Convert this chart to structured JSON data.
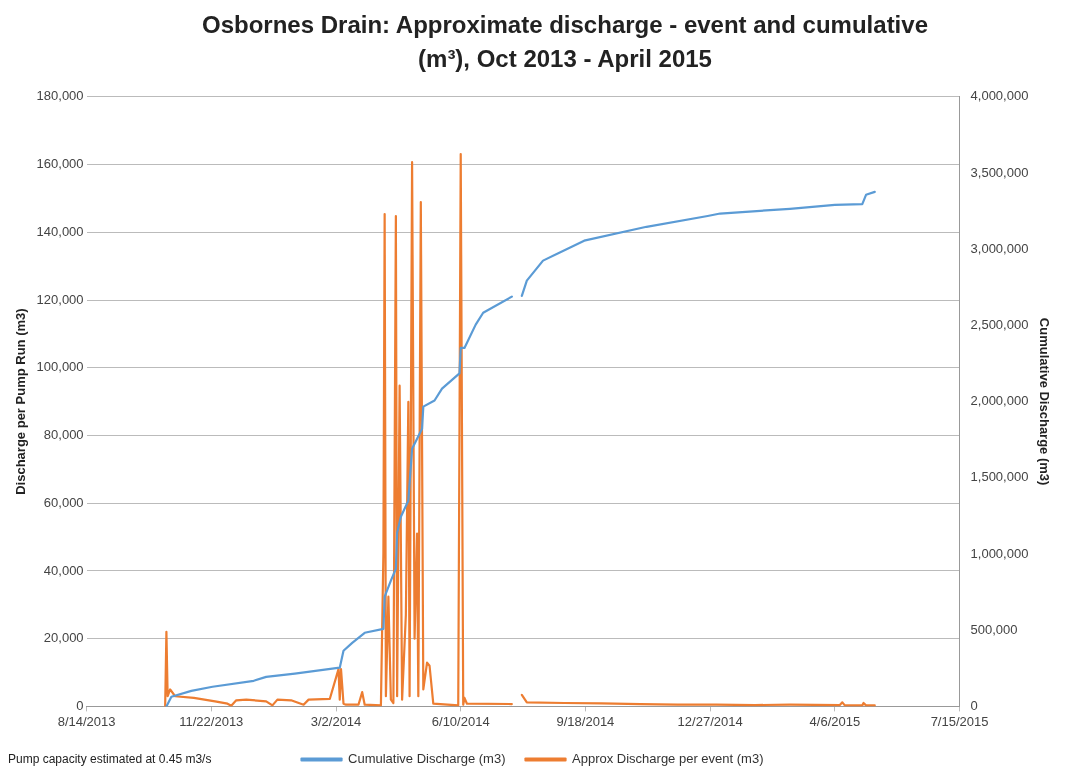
{
  "chart_data": {
    "type": "line",
    "title": "Osbornes Drain: Approximate discharge - event and cumulative (m³), Oct 2013 - April 2015",
    "ylabel": "Discharge per Pump Run (m3)",
    "y2label": "Cumulative Discharge (m3)",
    "annotations": [
      "Pump capacity estimated at 0.45 m3/s"
    ],
    "xlim": [
      "2013-08-14",
      "2015-07-15"
    ],
    "xticks": [
      {
        "value": "2013-08-14",
        "label": "8/14/2013"
      },
      {
        "value": "2013-11-22",
        "label": "11/22/2013"
      },
      {
        "value": "2014-03-02",
        "label": "3/2/2014"
      },
      {
        "value": "2014-06-10",
        "label": "6/10/2014"
      },
      {
        "value": "2014-09-18",
        "label": "9/18/2014"
      },
      {
        "value": "2014-12-27",
        "label": "12/27/2014"
      },
      {
        "value": "2015-04-06",
        "label": "4/6/2015"
      },
      {
        "value": "2015-07-15",
        "label": "7/15/2015"
      }
    ],
    "ylim": [
      0,
      180000
    ],
    "yticks": [
      0,
      {
        "value": 20000,
        "label": "20,000"
      },
      {
        "value": 40000,
        "label": "40,000"
      },
      {
        "value": 60000,
        "label": "60,000"
      },
      {
        "value": 80000,
        "label": "80,000"
      },
      {
        "value": 100000,
        "label": "100,000"
      },
      {
        "value": 120000,
        "label": "120,000"
      },
      {
        "value": 140000,
        "label": "140,000"
      },
      {
        "value": 160000,
        "label": "160,000"
      },
      {
        "value": 180000,
        "label": "180,000"
      }
    ],
    "y2lim": [
      0,
      4000000
    ],
    "y2ticks": [
      0,
      {
        "value": 500000,
        "label": "500,000"
      },
      {
        "value": 1000000,
        "label": "1,000,000"
      },
      {
        "value": 1500000,
        "label": "1,500,000"
      },
      {
        "value": 2000000,
        "label": "2,000,000"
      },
      {
        "value": 2500000,
        "label": "2,500,000"
      },
      {
        "value": 3000000,
        "label": "3,000,000"
      },
      {
        "value": 3500000,
        "label": "3,500,000"
      },
      {
        "value": 4000000,
        "label": "4,000,000"
      }
    ],
    "grid": "y",
    "legend": "bottom",
    "marker": "none",
    "line_style": "solid",
    "series": [
      {
        "name": "Approx Discharge per event (m3)",
        "color": "#ed7d31",
        "x": [
          "2013-10-16",
          "2013-10-17",
          "2013-10-18",
          "2013-10-20",
          "2013-10-24",
          "2013-11-08",
          "2013-11-25",
          "2013-12-05",
          "2013-12-08",
          "2013-12-12",
          "2013-12-20",
          "2014-01-05",
          "2014-01-10",
          "2014-01-14",
          "2014-01-25",
          "2014-02-04",
          "2014-02-08",
          "2014-02-25",
          "2014-03-04",
          "2014-03-05",
          "2014-03-06",
          "2014-03-07",
          "2014-03-08",
          "2014-03-10",
          "2014-03-20",
          "2014-03-23",
          "2014-03-25",
          "2014-04-07",
          "2014-04-09",
          "2014-04-10",
          "2014-04-11",
          "2014-04-13",
          "2014-04-15",
          "2014-04-17",
          "2014-04-19",
          "2014-04-20",
          "2014-04-22",
          "2014-04-24",
          "2014-04-27",
          "2014-04-29",
          "2014-04-30",
          "2014-05-02",
          "2014-05-04",
          "2014-05-06",
          "2014-05-07",
          "2014-05-09",
          "2014-05-11",
          "2014-05-14",
          "2014-05-16",
          "2014-05-19",
          "2014-06-08",
          "2014-06-10",
          "2014-06-12",
          "2014-06-13",
          "2014-06-15",
          "2014-07-21",
          "2014-07-25",
          "2014-07-29",
          "2014-08-02",
          "2014-09-01",
          "2014-10-01",
          "2014-11-01",
          "2014-12-01",
          "2015-01-01",
          "2015-02-01",
          "2015-03-01",
          "2015-04-10",
          "2015-04-12",
          "2015-04-14",
          "2015-04-28",
          "2015-04-29",
          "2015-05-01",
          "2015-05-08"
        ],
        "values": [
          0,
          22000,
          3000,
          5000,
          3000,
          2500,
          1500,
          800,
          200,
          1800,
          2000,
          1500,
          300,
          2000,
          1800,
          500,
          2000,
          2200,
          11000,
          2000,
          11000,
          6000,
          800,
          500,
          500,
          4200,
          500,
          300,
          45400,
          145400,
          3000,
          32400,
          2000,
          1000,
          144800,
          3000,
          94700,
          2000,
          27000,
          89900,
          3000,
          160700,
          20000,
          51000,
          3000,
          148900,
          5000,
          12900,
          12000,
          800,
          300,
          163100,
          500,
          2500,
          800,
          700,
          null,
          3400,
          1200,
          1000,
          900,
          700,
          500,
          500,
          400,
          500,
          400,
          1200,
          300,
          300,
          1000,
          300,
          300
        ]
      },
      {
        "name": "Cumulative Discharge (m3)",
        "color": "#5b9bd5",
        "axis": "y2",
        "x": [
          "2013-10-17",
          "2013-10-21",
          "2013-11-06",
          "2013-11-23",
          "2013-12-26",
          "2014-01-05",
          "2014-01-28",
          "2014-03-05",
          "2014-03-08",
          "2014-03-15",
          "2014-03-25",
          "2014-04-09",
          "2014-04-10",
          "2014-04-15",
          "2014-04-19",
          "2014-04-20",
          "2014-04-23",
          "2014-04-29",
          "2014-05-02",
          "2014-05-10",
          "2014-05-11",
          "2014-05-20",
          "2014-05-26",
          "2014-06-09",
          "2014-06-10",
          "2014-06-13",
          "2014-06-22",
          "2014-06-28",
          "2014-07-21",
          "2014-07-25",
          "2014-07-29",
          "2014-08-02",
          "2014-08-15",
          "2014-09-17",
          "2014-11-06",
          "2014-12-25",
          "2015-01-04",
          "2015-03-01",
          "2015-04-06",
          "2015-04-28",
          "2015-05-01",
          "2015-05-08"
        ],
        "values": [
          0,
          63000,
          102000,
          129000,
          168000,
          194000,
          215000,
          254000,
          365000,
          417000,
          483000,
          509000,
          720000,
          825000,
          903000,
          1140000,
          1245000,
          1350000,
          1690000,
          1822000,
          1967000,
          2007000,
          2085000,
          2185000,
          2352000,
          2352000,
          2505000,
          2583000,
          2689000,
          null,
          2694000,
          2794000,
          2925000,
          3056000,
          3147000,
          3218000,
          3234000,
          3265000,
          3291000,
          3296000,
          3357000,
          3376000
        ]
      }
    ]
  }
}
